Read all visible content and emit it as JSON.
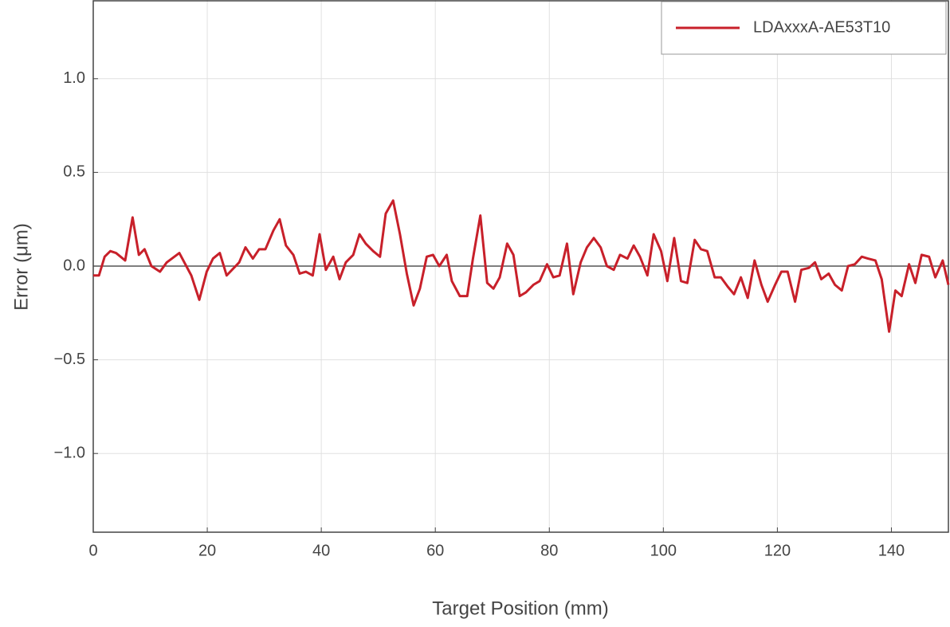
{
  "chart_data": {
    "type": "line",
    "x_label": "Target Position (mm)",
    "y_label": "Error (μm)",
    "xlim": [
      0,
      150
    ],
    "ylim": [
      -1.42,
      1.42
    ],
    "xticks": [
      0,
      20,
      40,
      60,
      80,
      100,
      120,
      140
    ],
    "yticks": [
      {
        "value": -1.0,
        "label": "−1.0"
      },
      {
        "value": -0.5,
        "label": "−0.5"
      },
      {
        "value": 0,
        "label": "0.0"
      },
      {
        "value": 0.5,
        "label": "0.5"
      },
      {
        "value": 1.0,
        "label": "1.0"
      }
    ],
    "grid": true,
    "legend": "upper right",
    "zero_line": true,
    "series": [
      {
        "name": "LDAxxxA-AE53T10",
        "color": "#c8202a",
        "x": [
          0,
          1,
          2,
          3,
          4,
          5.6,
          6.9,
          8,
          9,
          10.2,
          11.7,
          12.9,
          15.1,
          17.2,
          18.6,
          19.9,
          21,
          22.2,
          23.4,
          25.6,
          26.7,
          28,
          29.1,
          30.2,
          31.6,
          32.7,
          33.8,
          35.1,
          36.2,
          37.3,
          38.5,
          39.7,
          40.8,
          42.1,
          43.2,
          44.3,
          45.6,
          46.7,
          47.8,
          49.1,
          50.3,
          51.3,
          52.6,
          53.8,
          55,
          56.2,
          57.3,
          58.5,
          59.6,
          60.7,
          62,
          62.9,
          64.3,
          65.6,
          66.6,
          67.9,
          69.1,
          70.2,
          71.3,
          72.6,
          73.7,
          74.8,
          75.9,
          77.2,
          78.3,
          79.6,
          80.7,
          81.8,
          83.1,
          84.2,
          85.5,
          86.6,
          87.8,
          89,
          90.1,
          91.3,
          92.4,
          93.7,
          94.8,
          95.9,
          97.2,
          98.3,
          99.6,
          100.7,
          101.9,
          103.1,
          104.2,
          105.5,
          106.6,
          107.7,
          109,
          110.1,
          111.3,
          112.4,
          113.6,
          114.8,
          116,
          117.2,
          118.3,
          119.6,
          120.7,
          121.8,
          123.1,
          124.2,
          125.5,
          126.6,
          127.7,
          129,
          130.1,
          131.3,
          132.4,
          133.6,
          134.8,
          135.9,
          137.2,
          138.3,
          139.6,
          140.7,
          141.8,
          143.1,
          144.2,
          145.3,
          146.6,
          147.7,
          149,
          150
        ],
        "values": [
          -0.05,
          -0.05,
          0.05,
          0.08,
          0.07,
          0.03,
          0.26,
          0.06,
          0.09,
          0.0,
          -0.03,
          0.02,
          0.07,
          -0.05,
          -0.18,
          -0.03,
          0.04,
          0.07,
          -0.05,
          0.02,
          0.1,
          0.04,
          0.09,
          0.09,
          0.19,
          0.25,
          0.11,
          0.06,
          -0.04,
          -0.03,
          -0.05,
          0.17,
          -0.02,
          0.05,
          -0.07,
          0.02,
          0.06,
          0.17,
          0.12,
          0.08,
          0.05,
          0.28,
          0.35,
          0.17,
          -0.04,
          -0.21,
          -0.12,
          0.05,
          0.06,
          0.0,
          0.06,
          -0.08,
          -0.16,
          -0.16,
          0.04,
          0.27,
          -0.09,
          -0.12,
          -0.06,
          0.12,
          0.06,
          -0.16,
          -0.14,
          -0.1,
          -0.08,
          0.01,
          -0.06,
          -0.05,
          0.12,
          -0.15,
          0.02,
          0.1,
          0.15,
          0.1,
          0.0,
          -0.02,
          0.06,
          0.04,
          0.11,
          0.05,
          -0.05,
          0.17,
          0.08,
          -0.08,
          0.15,
          -0.08,
          -0.09,
          0.14,
          0.09,
          0.08,
          -0.06,
          -0.06,
          -0.11,
          -0.15,
          -0.06,
          -0.17,
          0.03,
          -0.1,
          -0.19,
          -0.1,
          -0.03,
          -0.03,
          -0.19,
          -0.02,
          -0.01,
          0.02,
          -0.07,
          -0.04,
          -0.1,
          -0.13,
          0.0,
          0.01,
          0.05,
          0.04,
          0.03,
          -0.07,
          -0.35,
          -0.13,
          -0.16,
          0.01,
          -0.09,
          0.06,
          0.05,
          -0.06,
          0.03,
          -0.1
        ]
      }
    ]
  }
}
